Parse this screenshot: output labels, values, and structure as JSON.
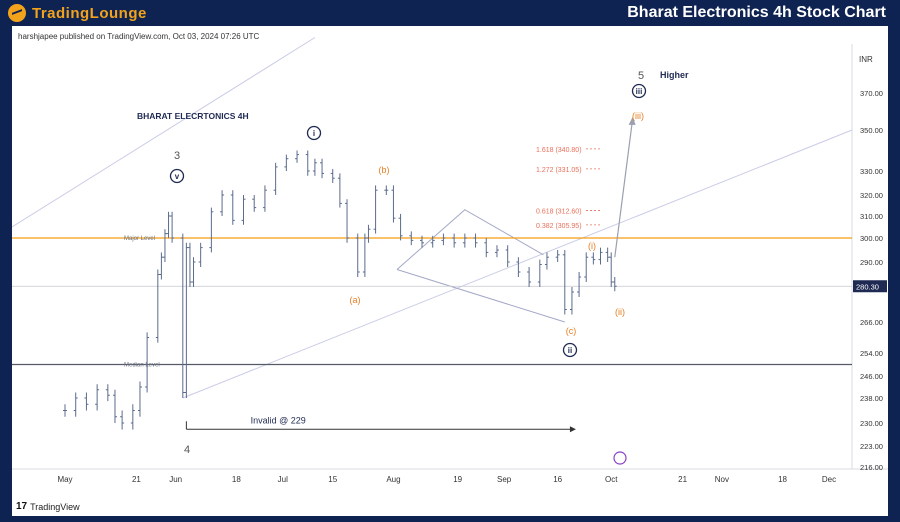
{
  "header": {
    "logo_text": "TradingLounge",
    "title": "Bharat Electronics 4h Stock Chart"
  },
  "published_line": "harshjapee published on TradingView.com, Oct 03, 2024 07:26 UTC",
  "tradingview_brand": "TradingView",
  "colors": {
    "header_bg": "#0e2352",
    "logo_orange": "#f2a31b",
    "price_bars": "#5b6b8c",
    "major_level": "#f39c12",
    "median_level": "#555b66",
    "wave_navy": "#1f2a52",
    "wave_orange": "#e67e22",
    "fib_text": "#e8705a",
    "channel": "#c9cce6"
  },
  "chart_data": {
    "type": "ohlc",
    "title": "BHARAT ELECRTONICS 4H",
    "currency": "INR",
    "last_price": 280.3,
    "last_price_label": "280.30",
    "y_ticks": [
      "370.00",
      "350.00",
      "330.00",
      "320.00",
      "310.00",
      "300.00",
      "290.00",
      "266.00",
      "254.00",
      "246.00",
      "238.00",
      "230.00",
      "223.00",
      "216.00"
    ],
    "x_ticks": [
      "May",
      "21",
      "Jun",
      "18",
      "Jul",
      "15",
      "Aug",
      "19",
      "Sep",
      "16",
      "Oct",
      "21",
      "Nov",
      "18",
      "Dec"
    ],
    "levels": [
      {
        "name": "Major Level",
        "price": 300
      },
      {
        "name": "Median Level",
        "price": 250
      }
    ],
    "fib_levels": [
      {
        "label": "1.618 (340.80)",
        "price": 340.8
      },
      {
        "label": "1.272 (331.05)",
        "price": 331.05
      },
      {
        "label": "0.618 (312.60)",
        "price": 312.6
      },
      {
        "label": "0.382 (305.95)",
        "price": 305.95
      }
    ],
    "invalidation": {
      "label": "Invalid @ 229",
      "price": 229
    },
    "wave_labels": [
      {
        "text": "3",
        "date": "2024-05-30",
        "style": "plain"
      },
      {
        "text": "v",
        "date": "2024-05-30",
        "style": "navy-circle"
      },
      {
        "text": "4",
        "date": "2024-06-04",
        "style": "plain"
      },
      {
        "text": "i",
        "date": "2024-07-10",
        "style": "navy-circle"
      },
      {
        "text": "(a)",
        "date": "2024-07-25",
        "style": "orange"
      },
      {
        "text": "(b)",
        "date": "2024-07-30",
        "style": "orange"
      },
      {
        "text": "(c)",
        "date": "2024-09-18",
        "style": "orange"
      },
      {
        "text": "ii",
        "date": "2024-09-18",
        "style": "navy-circle"
      },
      {
        "text": "(i)",
        "date": "2024-09-24",
        "style": "orange"
      },
      {
        "text": "(ii)",
        "date": "2024-10-01",
        "style": "orange"
      },
      {
        "text": "(iii)",
        "date": "2024-10-07",
        "style": "orange"
      },
      {
        "text": "iii",
        "date": "2024-10-07",
        "style": "navy-circle"
      },
      {
        "text": "5",
        "date": "2024-10-07",
        "style": "plain"
      },
      {
        "text": "Higher",
        "date": "2024-10-09",
        "style": "navy"
      }
    ],
    "series": [
      {
        "dates": [
          "2024-05-01",
          "2024-05-04",
          "2024-05-07",
          "2024-05-10",
          "2024-05-13",
          "2024-05-15",
          "2024-05-17",
          "2024-05-20",
          "2024-05-22",
          "2024-05-24",
          "2024-05-27",
          "2024-05-28",
          "2024-05-29",
          "2024-05-30",
          "2024-05-31",
          "2024-06-03",
          "2024-06-04",
          "2024-06-05",
          "2024-06-06",
          "2024-06-08",
          "2024-06-11",
          "2024-06-14",
          "2024-06-17",
          "2024-06-20",
          "2024-06-23",
          "2024-06-26",
          "2024-06-29",
          "2024-07-02",
          "2024-07-05",
          "2024-07-08",
          "2024-07-10",
          "2024-07-12",
          "2024-07-15",
          "2024-07-17",
          "2024-07-19",
          "2024-07-22",
          "2024-07-24",
          "2024-07-25",
          "2024-07-27",
          "2024-07-30",
          "2024-08-01",
          "2024-08-03",
          "2024-08-06",
          "2024-08-09",
          "2024-08-12",
          "2024-08-15",
          "2024-08-18",
          "2024-08-21",
          "2024-08-24",
          "2024-08-27",
          "2024-08-30",
          "2024-09-02",
          "2024-09-05",
          "2024-09-08",
          "2024-09-11",
          "2024-09-13",
          "2024-09-16",
          "2024-09-18",
          "2024-09-20",
          "2024-09-22",
          "2024-09-24",
          "2024-09-26",
          "2024-09-28",
          "2024-09-30",
          "2024-10-01",
          "2024-10-02"
        ],
        "close": [
          234,
          238,
          236,
          241,
          239,
          232,
          230,
          234,
          242,
          260,
          285,
          292,
          302,
          310,
          300,
          240,
          296,
          282,
          290,
          296,
          312,
          320,
          308,
          318,
          314,
          322,
          332,
          336,
          338,
          330,
          334,
          329,
          327,
          316,
          300,
          286,
          300,
          304,
          322,
          322,
          309,
          301,
          299,
          298,
          299,
          300,
          298,
          300,
          298,
          294,
          295,
          290,
          286,
          282,
          289,
          292,
          293,
          271,
          278,
          284,
          292,
          291,
          294,
          292,
          282,
          280.3
        ]
      }
    ]
  }
}
